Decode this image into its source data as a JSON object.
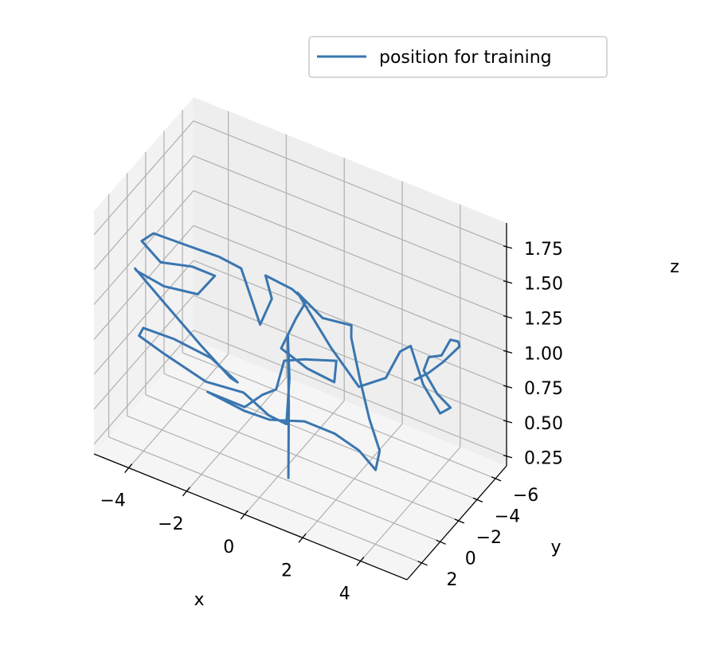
{
  "chart_data": {
    "type": "line3d",
    "series": [
      {
        "name": "position for training",
        "color": "#3a76b0",
        "points": [
          [
            0.3,
            -0.2,
            0.18
          ],
          [
            0.32,
            -0.18,
            0.7
          ],
          [
            0.28,
            -0.2,
            1.2
          ],
          [
            0.35,
            -0.15,
            0.9
          ],
          [
            0.2,
            -0.3,
            0.55
          ],
          [
            -0.6,
            -0.9,
            0.5
          ],
          [
            -1.6,
            -1.3,
            0.55
          ],
          [
            -2.8,
            -1.0,
            0.55
          ],
          [
            -4.0,
            -0.3,
            0.7
          ],
          [
            -4.6,
            0.6,
            0.85
          ],
          [
            -4.2,
            1.4,
            1.0
          ],
          [
            -3.0,
            1.8,
            1.05
          ],
          [
            -1.8,
            1.6,
            1.0
          ],
          [
            -1.2,
            0.6,
            0.8
          ],
          [
            -1.8,
            -0.5,
            0.7
          ],
          [
            -3.0,
            -1.0,
            0.8
          ],
          [
            -4.2,
            -0.6,
            1.05
          ],
          [
            -4.8,
            0.4,
            1.3
          ],
          [
            -4.4,
            1.5,
            1.4
          ],
          [
            -3.2,
            2.3,
            1.45
          ],
          [
            -2.0,
            2.4,
            1.5
          ],
          [
            -1.6,
            1.8,
            1.62
          ],
          [
            -2.6,
            1.1,
            1.55
          ],
          [
            -3.6,
            1.4,
            1.52
          ],
          [
            -4.0,
            2.2,
            1.7
          ],
          [
            -3.4,
            2.8,
            1.85
          ],
          [
            -2.2,
            2.9,
            1.87
          ],
          [
            -1.2,
            2.6,
            1.85
          ],
          [
            -0.6,
            2.1,
            1.78
          ],
          [
            -0.2,
            1.3,
            1.35
          ],
          [
            0.3,
            1.6,
            1.6
          ],
          [
            0.4,
            2.6,
            1.85
          ],
          [
            1.4,
            2.9,
            1.86
          ],
          [
            1.8,
            2.6,
            1.78
          ],
          [
            1.2,
            1.8,
            1.55
          ],
          [
            0.4,
            0.9,
            1.2
          ],
          [
            1.2,
            0.6,
            1.1
          ],
          [
            2.2,
            0.8,
            1.1
          ],
          [
            2.4,
            1.2,
            1.3
          ],
          [
            1.4,
            1.5,
            1.25
          ],
          [
            0.6,
            1.2,
            1.15
          ],
          [
            0.1,
            0.5,
            0.85
          ],
          [
            -0.6,
            -0.2,
            0.7
          ],
          [
            -1.4,
            -0.8,
            0.5
          ],
          [
            -2.6,
            -1.3,
            0.45
          ],
          [
            -3.0,
            -1.8,
            0.4
          ],
          [
            -1.8,
            -2.0,
            0.35
          ],
          [
            -0.8,
            -1.6,
            0.4
          ],
          [
            0.6,
            -1.0,
            0.55
          ],
          [
            1.8,
            -0.5,
            0.6
          ],
          [
            2.8,
            0.0,
            0.6
          ],
          [
            3.5,
            0.4,
            0.55
          ],
          [
            3.8,
            0.9,
            0.75
          ],
          [
            3.6,
            1.4,
            1.0
          ],
          [
            3.4,
            1.8,
            1.3
          ],
          [
            3.2,
            2.1,
            1.6
          ],
          [
            3.3,
            2.4,
            1.72
          ],
          [
            2.4,
            2.7,
            1.72
          ],
          [
            1.6,
            2.9,
            1.85
          ],
          [
            2.6,
            2.4,
            1.5
          ],
          [
            3.4,
            1.9,
            1.25
          ],
          [
            4.2,
            1.5,
            1.35
          ],
          [
            4.6,
            1.2,
            1.55
          ],
          [
            4.9,
            1.0,
            1.6
          ],
          [
            5.2,
            0.6,
            1.32
          ],
          [
            5.6,
            0.0,
            1.1
          ],
          [
            5.8,
            -0.5,
            1.12
          ],
          [
            5.4,
            -0.3,
            1.2
          ],
          [
            5.0,
            -0.1,
            1.35
          ],
          [
            5.3,
            0.3,
            1.5
          ],
          [
            5.9,
            0.8,
            1.6
          ],
          [
            6.4,
            1.4,
            1.8
          ],
          [
            6.8,
            1.8,
            1.85
          ],
          [
            7.0,
            2.3,
            1.87
          ],
          [
            6.4,
            2.2,
            1.7
          ],
          [
            5.8,
            1.9,
            1.55
          ],
          [
            5.2,
            1.5,
            1.42
          ]
        ]
      }
    ],
    "xlabel": "x",
    "ylabel": "y",
    "zlabel": "z",
    "xlim": [
      -5.2,
      5.6
    ],
    "ylim": [
      -7.2,
      3.6
    ],
    "zlim": [
      0.18,
      1.92
    ],
    "xticks": [
      -4,
      -2,
      0,
      2,
      4
    ],
    "yticks": [
      -6,
      -4,
      -2,
      0,
      2
    ],
    "zticks": [
      0.25,
      0.5,
      0.75,
      1.0,
      1.25,
      1.5,
      1.75
    ],
    "xtick_labels": [
      "−4",
      "−2",
      "0",
      "2",
      "4"
    ],
    "ytick_labels": [
      "−6",
      "−4",
      "−2",
      "0",
      "2"
    ],
    "ztick_labels": [
      "0.25",
      "0.50",
      "0.75",
      "1.00",
      "1.25",
      "1.50",
      "1.75"
    ],
    "grid": true,
    "legend": {
      "position": "top-right"
    },
    "colors": {
      "series": "#3a76b0",
      "pane_back": "#eeeeee",
      "pane_left": "#f2f2f2",
      "pane_floor": "#f5f5f5",
      "grid": "#b0b0b0",
      "axis": "#000000"
    }
  }
}
